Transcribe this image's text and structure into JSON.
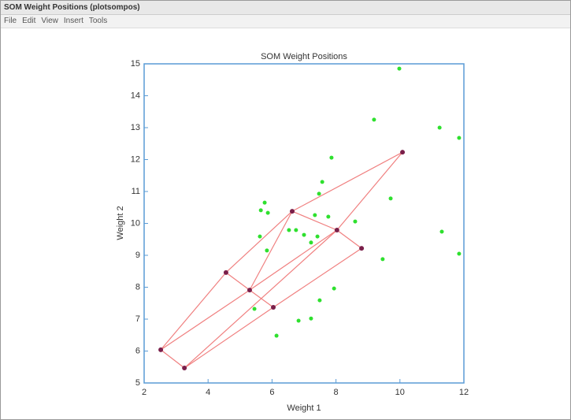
{
  "window": {
    "title": "SOM Weight Positions (plotsompos)",
    "menu": [
      "File",
      "Edit",
      "View",
      "Insert",
      "Tools"
    ]
  },
  "chart_data": {
    "type": "scatter",
    "title": "SOM Weight Positions",
    "x_label": "Weight 1",
    "y_label": "Weight 2",
    "xlim": [
      2,
      12
    ],
    "ylim": [
      5,
      15
    ],
    "xticks": [
      2,
      4,
      6,
      8,
      10,
      12
    ],
    "yticks": [
      5,
      6,
      7,
      8,
      9,
      10,
      11,
      12,
      13,
      14,
      15
    ],
    "series": [
      {
        "color": "#2ee02e",
        "x": [
          9.98,
          9.19,
          11.24,
          11.85,
          7.86,
          7.57,
          7.47,
          9.71,
          5.77,
          5.65,
          5.87,
          7.34,
          7.76,
          8.6,
          6.53,
          6.75,
          7.0,
          7.42,
          7.22,
          5.62,
          11.31,
          5.84,
          9.46,
          11.85,
          7.94,
          7.49,
          5.45,
          6.83,
          7.22,
          6.14
        ],
        "values": [
          14.85,
          13.25,
          13.0,
          12.68,
          12.06,
          11.3,
          10.93,
          10.78,
          10.65,
          10.41,
          10.33,
          10.26,
          10.21,
          10.06,
          9.79,
          9.79,
          9.64,
          9.59,
          9.4,
          9.59,
          9.74,
          9.15,
          8.88,
          9.05,
          7.96,
          7.59,
          7.32,
          6.95,
          7.02,
          6.48
        ]
      },
      {
        "color": "#7a1f4a",
        "link_color": "#f08080",
        "x": [
          2.52,
          3.26,
          4.56,
          5.3,
          6.04,
          6.63,
          8.03,
          8.8,
          10.08
        ],
        "values": [
          6.04,
          5.47,
          8.46,
          7.91,
          7.37,
          10.38,
          9.79,
          9.22,
          12.23
        ],
        "links": [
          [
            0,
            1
          ],
          [
            0,
            2
          ],
          [
            2,
            5
          ],
          [
            5,
            8
          ],
          [
            1,
            4
          ],
          [
            4,
            7
          ],
          [
            0,
            3
          ],
          [
            3,
            6
          ],
          [
            6,
            8
          ],
          [
            2,
            3
          ],
          [
            3,
            4
          ],
          [
            3,
            5
          ],
          [
            5,
            6
          ],
          [
            6,
            7
          ],
          [
            1,
            6
          ]
        ]
      }
    ]
  }
}
